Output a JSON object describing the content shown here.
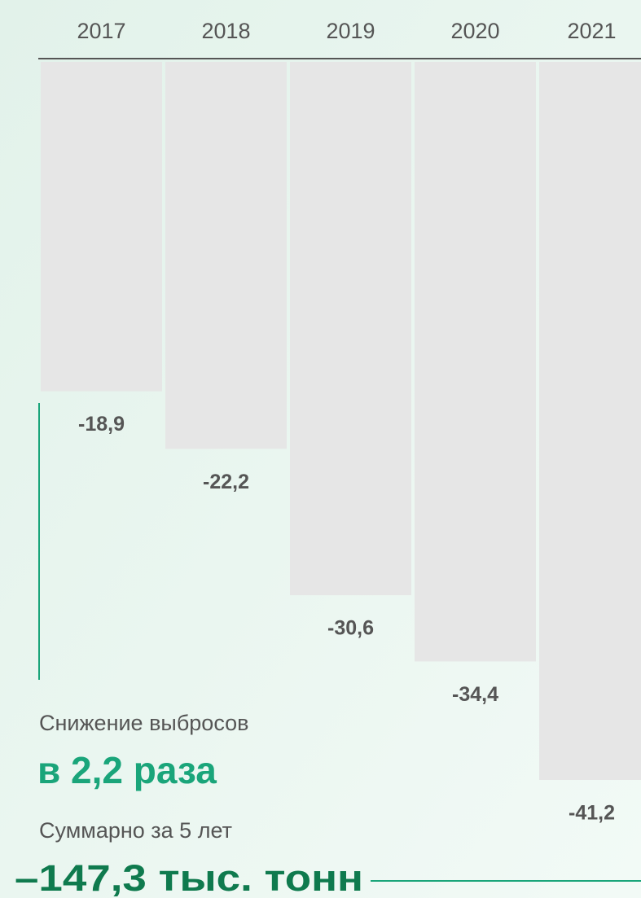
{
  "chart_data": {
    "type": "bar",
    "categories": [
      "2017",
      "2018",
      "2019",
      "2020",
      "2021"
    ],
    "values": [
      -18.9,
      -22.2,
      -30.6,
      -34.4,
      -41.2
    ],
    "value_labels": [
      "-18,9",
      "-22,2",
      "-30,6",
      "-34,4",
      "-41,2"
    ],
    "color": "#e6e6e6",
    "annotations": [
      "Снижение выбросов",
      "в 2,2 раза",
      "Суммарно за 5 лет",
      "–147,3 тыс. тонн"
    ]
  }
}
